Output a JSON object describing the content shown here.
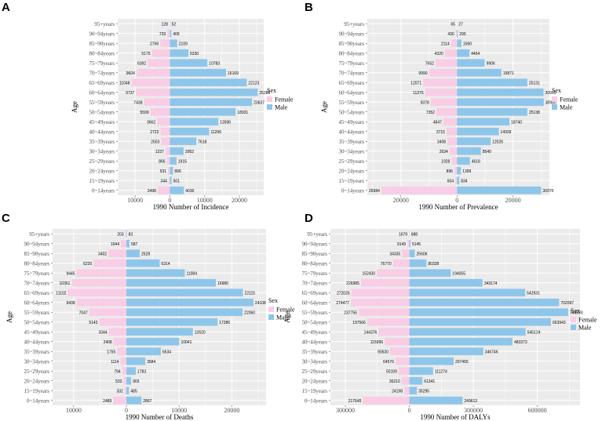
{
  "figure": {
    "legend_title": "Sex",
    "legend_items": [
      {
        "label": "Female",
        "color": "#F9CDE5"
      },
      {
        "label": "Male",
        "color": "#8EC6EA"
      }
    ],
    "colors": {
      "female": "#F9CDE5",
      "male": "#8EC6EA",
      "panel_bg": "#EBEBEB",
      "grid": "#FFFFFF",
      "text": "#4D4D4D"
    }
  },
  "chart_data": [
    {
      "type": "bar",
      "panel": "A",
      "title": "A",
      "xlabel": "1990 Number of Incidence",
      "ylabel": "Age",
      "xlim": [
        -15000,
        27000
      ],
      "xticks": [
        -10000,
        0,
        10000,
        20000
      ],
      "xtick_labels": [
        "10000",
        "0",
        "10000",
        "20000"
      ],
      "categories": [
        "0~14years",
        "15~19years",
        "20~24years",
        "25~29years",
        "30~34years",
        "35~39years",
        "40~44years",
        "45~49years",
        "50~54years",
        "55~59years",
        "60~64years",
        "65~69years",
        "70~74years",
        "75~79years",
        "80~84years",
        "85~90years",
        "90~94years",
        "95+years"
      ],
      "series": [
        {
          "name": "Female",
          "values": [
            3498,
            344,
            531,
            866,
            1237,
            2503,
            2723,
            3662,
            5599,
            7438,
            9737,
            11048,
            9604,
            6392,
            5175,
            2769,
            729,
            128
          ]
        },
        {
          "name": "Male",
          "values": [
            4030,
            501,
            896,
            1915,
            3952,
            7618,
            11296,
            13936,
            18931,
            23637,
            25286,
            22123,
            16169,
            10783,
            5330,
            2109,
            409,
            52
          ]
        }
      ]
    },
    {
      "type": "bar",
      "panel": "B",
      "title": "B",
      "xlabel": "1990 Number of Prevalence",
      "ylabel": "Age",
      "xlim": [
        -32000,
        33000
      ],
      "xticks": [
        -20000,
        0,
        20000
      ],
      "xtick_labels": [
        "20000",
        "0",
        "20000"
      ],
      "categories": [
        "0~14years",
        "15~19years",
        "20~24years",
        "25~29years",
        "30~34years",
        "35~39years",
        "40~44years",
        "45~49years",
        "50~54years",
        "55~59years",
        "60~64years",
        "65~69years",
        "70~74years",
        "75~79years",
        "80~84years",
        "85~90years",
        "90~94years",
        "95+years"
      ],
      "series": [
        {
          "name": "Female",
          "values": [
            26984,
            604,
            896,
            1928,
            2634,
            3408,
            3715,
            4847,
            7352,
            9378,
            11376,
            12071,
            9990,
            7652,
            4320,
            2114,
            430,
            65
          ]
        },
        {
          "name": "Male",
          "values": [
            30070,
            834,
            1399,
            4618,
            8540,
            12026,
            14939,
            18740,
            25138,
            30980,
            30915,
            25131,
            15871,
            9906,
            4464,
            1590,
            290,
            27
          ]
        }
      ]
    },
    {
      "type": "bar",
      "panel": "C",
      "title": "C",
      "xlabel": "1990 Number of Deaths",
      "ylabel": "Age",
      "xlim": [
        -14000,
        26500
      ],
      "xticks": [
        -10000,
        0,
        10000,
        20000
      ],
      "xtick_labels": [
        "10000",
        "0",
        "10000",
        "20000"
      ],
      "categories": [
        "0~14years",
        "15~19years",
        "20~24years",
        "25~29years",
        "30~34years",
        "35~39years",
        "40~44years",
        "45~49years",
        "50~54years",
        "55~59years",
        "60~64years",
        "65~69years",
        "70~74years",
        "75~79years",
        "80~84years",
        "85~90years",
        "90~94years",
        "95+years"
      ],
      "series": [
        {
          "name": "Female",
          "values": [
            2489,
            332,
            533,
            794,
            1114,
            1755,
            2408,
            3344,
            5143,
            7047,
            9438,
            11102,
            10361,
            9445,
            6220,
            3402,
            1044,
            203
          ]
        },
        {
          "name": "Male",
          "values": [
            2867,
            485,
            903,
            1783,
            3584,
            6534,
            10041,
            12620,
            17286,
            22060,
            24108,
            22115,
            16980,
            11084,
            6314,
            2528,
            587,
            83
          ]
        }
      ]
    },
    {
      "type": "bar",
      "panel": "D",
      "title": "D",
      "xlabel": "1990 Number of DALYs",
      "ylabel": "Age",
      "xlim": [
        -370000,
        800000
      ],
      "xticks": [
        -300000,
        0,
        300000,
        600000
      ],
      "xtick_labels": [
        "300000",
        "0",
        "300000",
        "600000"
      ],
      "categories": [
        "0~14years",
        "15~19years",
        "20~24years",
        "25~29years",
        "30~34years",
        "35~39years",
        "40~44years",
        "45~49years",
        "50~54years",
        "55~59years",
        "60~64years",
        "65~69years",
        "70~74years",
        "75~79years",
        "80~84years",
        "85~90years",
        "90~94years",
        "95+years"
      ],
      "series": [
        {
          "name": "Female",
          "values": [
            217645,
            24198,
            36210,
            50109,
            64576,
            90530,
            115996,
            144376,
            197566,
            237755,
            274477,
            272026,
            226985,
            152430,
            76770,
            34335,
            9149,
            1679
          ]
        },
        {
          "name": "Male",
          "values": [
            249613,
            35295,
            61341,
            111274,
            207465,
            346746,
            483373,
            545124,
            663943,
            744530,
            702097,
            542931,
            343174,
            194055,
            80339,
            25606,
            5145,
            688
          ]
        }
      ]
    }
  ]
}
